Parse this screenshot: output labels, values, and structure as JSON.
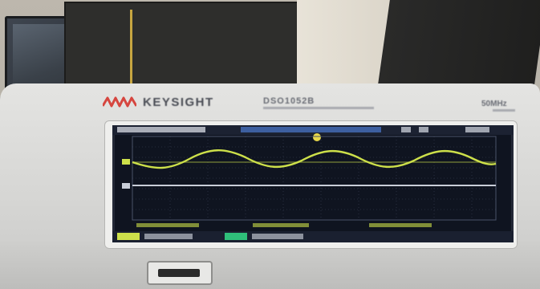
{
  "device": {
    "brand": "KEYSIGHT",
    "model": "DSO1052B",
    "bandwidth": "50MHz"
  },
  "display": {
    "channel1_color": "#cde04a",
    "channel2_color": "#c8cdd8",
    "screen_color": "#0f1420",
    "trigger_marker_color": "#e8d84a"
  }
}
